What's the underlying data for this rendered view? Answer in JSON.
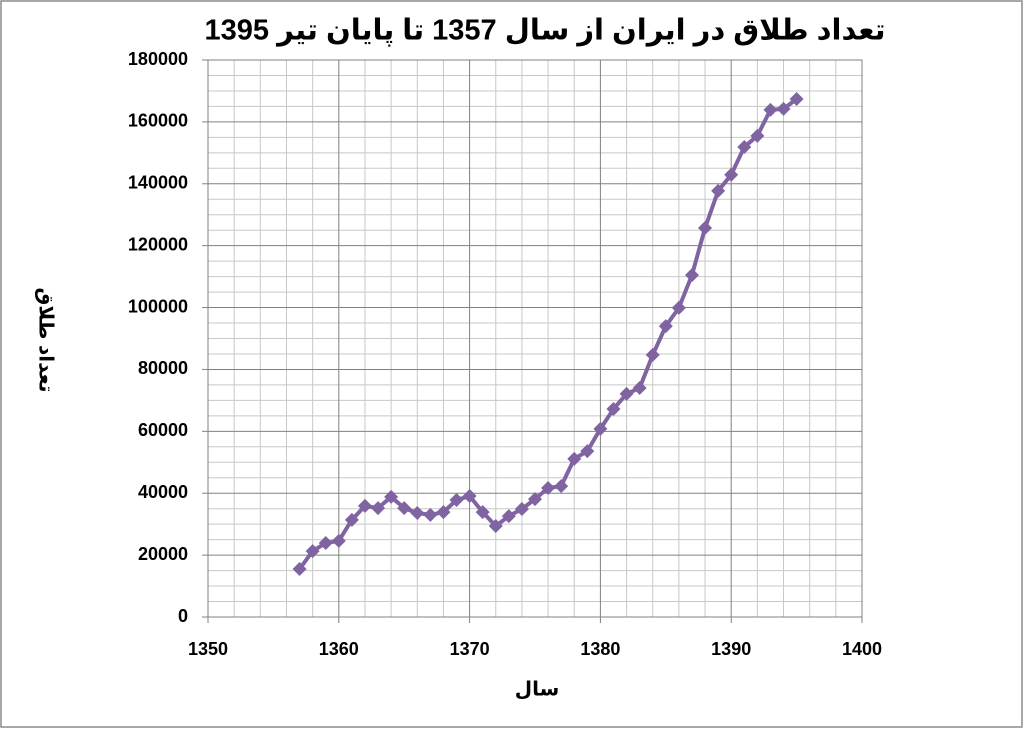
{
  "chart_data": {
    "type": "line",
    "title": "تعداد طلاق در ایران از سال 1357 تا پایان تیر 1395",
    "x_label": "سال",
    "y_label": "تعداد طلاق",
    "x": [
      1357,
      1358,
      1359,
      1360,
      1361,
      1362,
      1363,
      1364,
      1365,
      1366,
      1367,
      1368,
      1369,
      1370,
      1371,
      1372,
      1373,
      1374,
      1375,
      1376,
      1377,
      1378,
      1379,
      1380,
      1381,
      1382,
      1383,
      1384,
      1385,
      1386,
      1387,
      1388,
      1389,
      1390,
      1391,
      1392,
      1393,
      1394,
      1395
    ],
    "values": [
      15500,
      21300,
      23900,
      24600,
      31400,
      35900,
      35200,
      38800,
      35200,
      33600,
      33000,
      33900,
      37800,
      39100,
      33900,
      29400,
      32600,
      34900,
      38100,
      41700,
      42300,
      51100,
      53600,
      60800,
      67200,
      72100,
      74000,
      84700,
      94000,
      99900,
      110500,
      125700,
      137700,
      142900,
      151900,
      155500,
      163900,
      164200,
      167400
    ],
    "color": "#8064a2",
    "xlim": [
      1350,
      1400
    ],
    "xticks": [
      1350,
      1360,
      1370,
      1380,
      1390,
      1400
    ],
    "ylim": [
      0,
      180000
    ],
    "yticks": [
      0,
      20000,
      40000,
      60000,
      80000,
      100000,
      120000,
      140000,
      160000,
      180000
    ],
    "grid": true
  }
}
